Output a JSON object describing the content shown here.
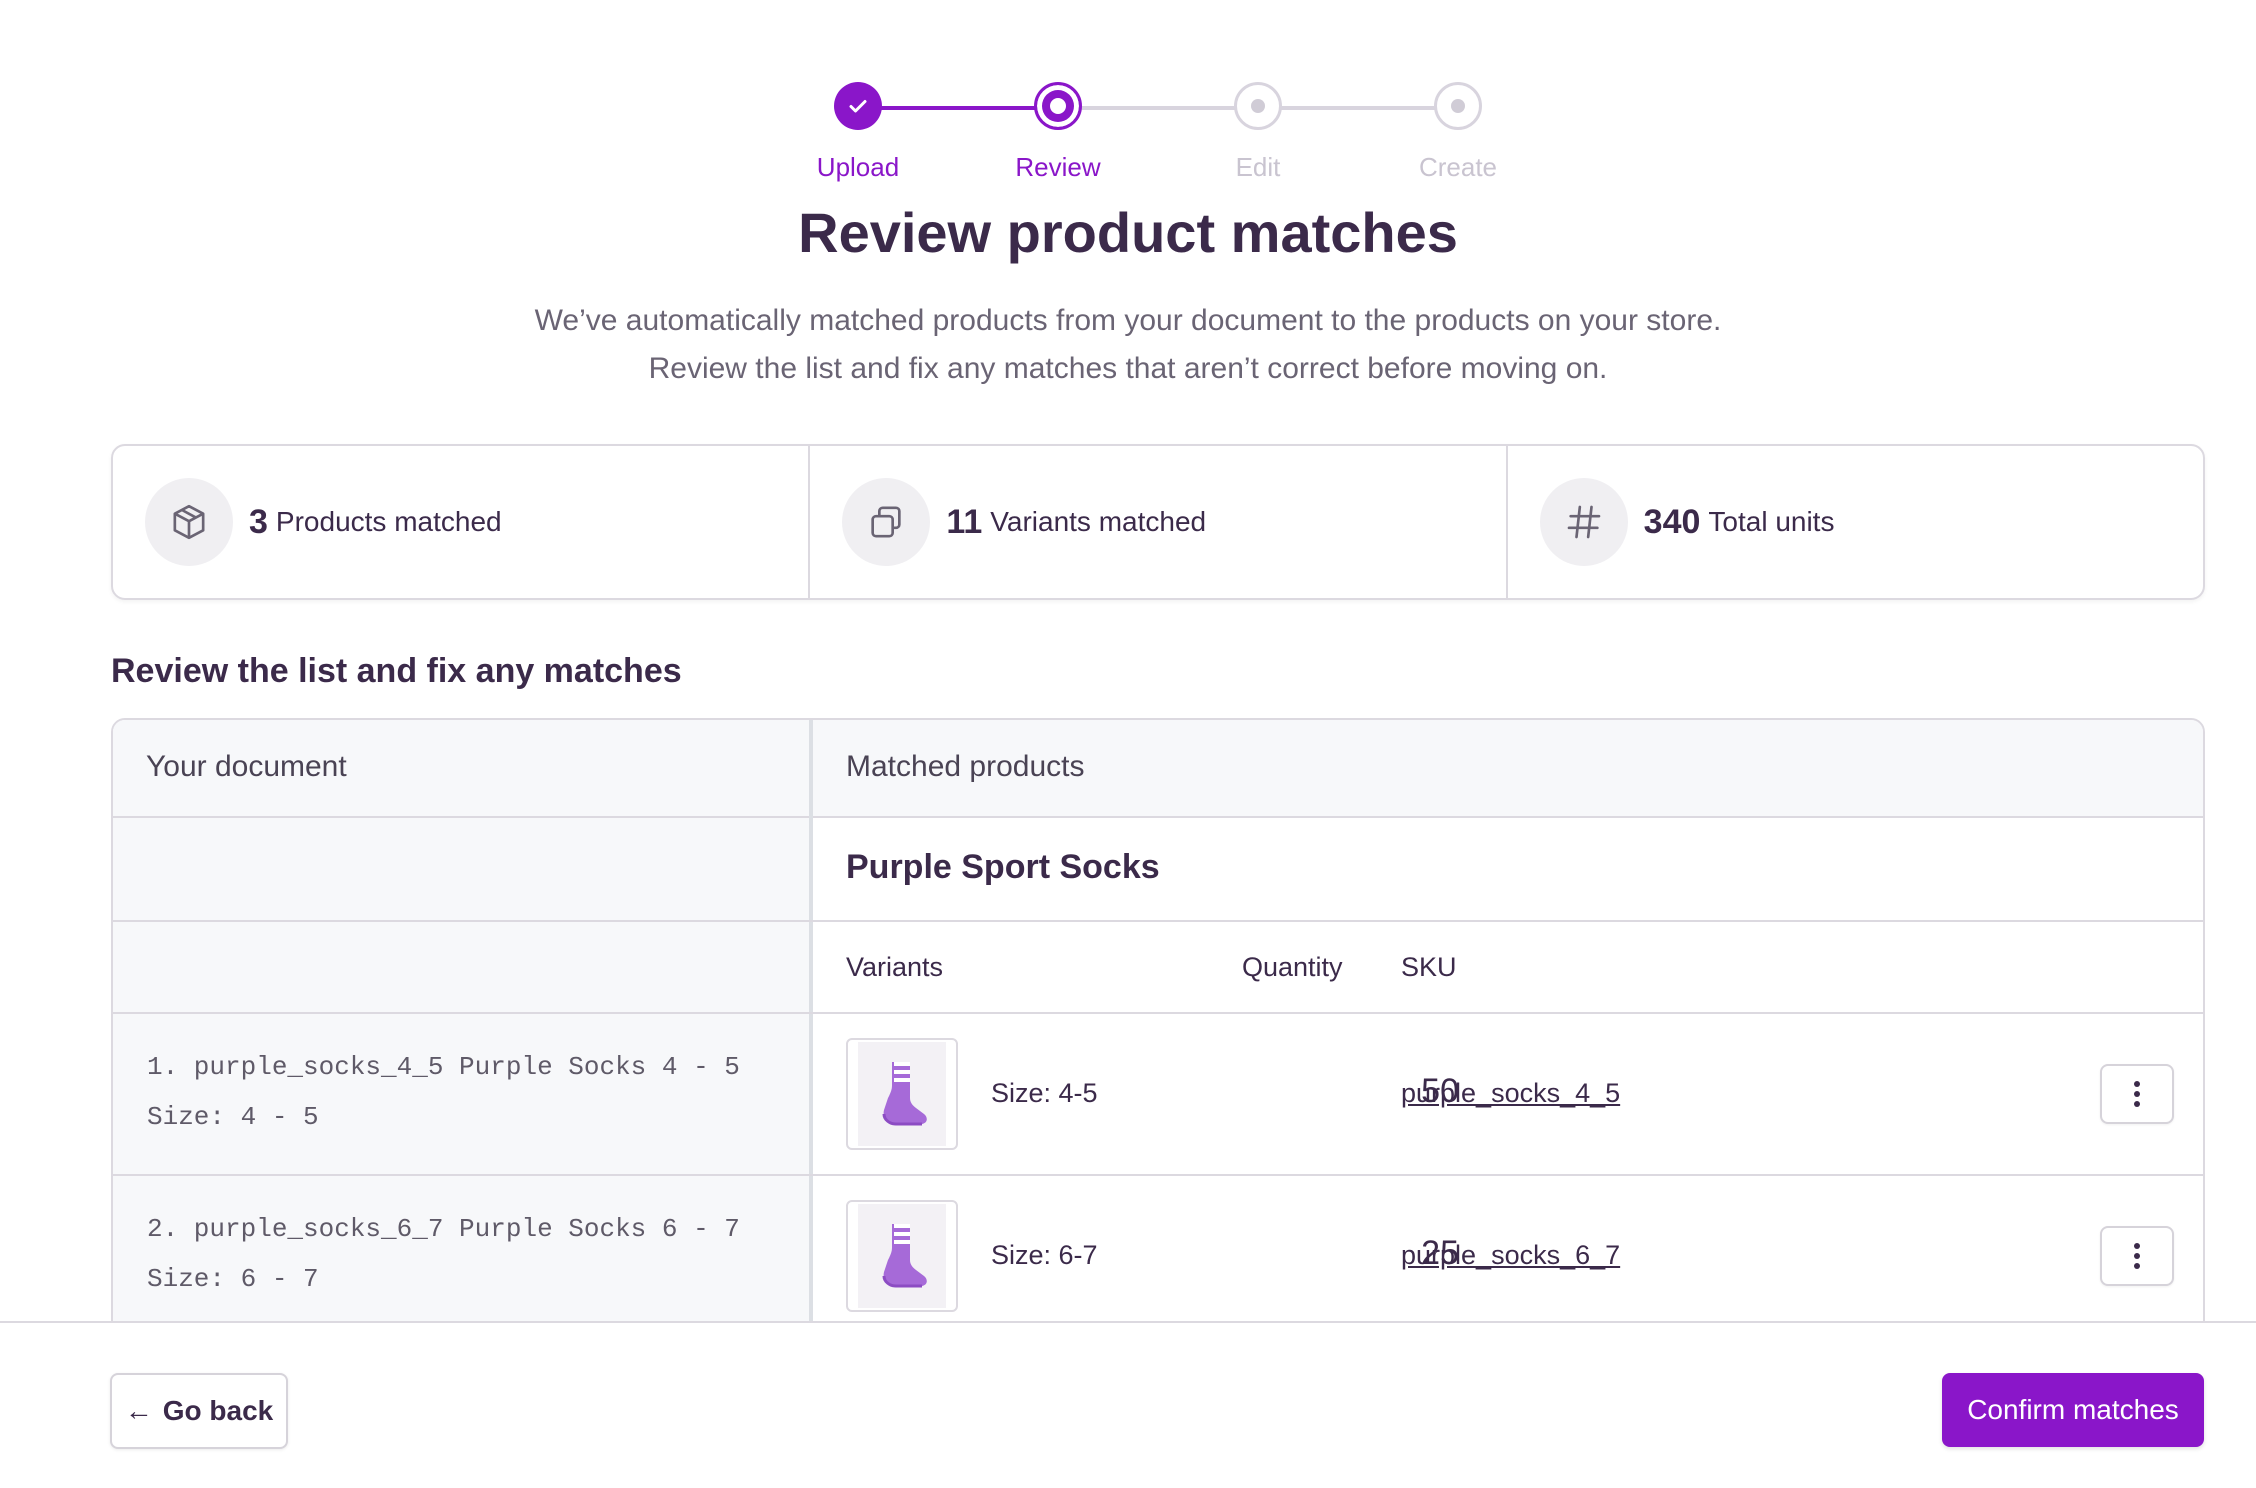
{
  "stepper": {
    "steps": [
      {
        "label": "Upload",
        "state": "done"
      },
      {
        "label": "Review",
        "state": "active"
      },
      {
        "label": "Edit",
        "state": "pending"
      },
      {
        "label": "Create",
        "state": "pending"
      }
    ]
  },
  "header": {
    "title": "Review product matches",
    "subtitle_line1": "We’ve automatically matched products from your document to the products on your store.",
    "subtitle_line2": "Review the list and fix any matches that aren’t correct before moving on."
  },
  "stats": [
    {
      "icon": "box-icon",
      "value": "3",
      "label": "Products matched"
    },
    {
      "icon": "copy-icon",
      "value": "11",
      "label": "Variants matched"
    },
    {
      "icon": "hash-icon",
      "value": "340",
      "label": "Total units"
    }
  ],
  "section_title": "Review the list and fix any matches",
  "table": {
    "col_document": "Your document",
    "col_matched": "Matched products",
    "product_name": "Purple Sport Socks",
    "sub_headers": {
      "variants": "Variants",
      "quantity": "Quantity",
      "sku": "SKU"
    },
    "rows": [
      {
        "doc_line1": "1. purple_socks_4_5 Purple Socks 4 - 5",
        "doc_line2": "Size: 4 - 5",
        "variant": "Size: 4-5",
        "quantity": "50",
        "sku": "purple_socks_4_5"
      },
      {
        "doc_line1": "2. purple_socks_6_7 Purple Socks 6 - 7",
        "doc_line2": "Size: 6 - 7",
        "variant": "Size: 6-7",
        "quantity": "25",
        "sku": "purple_socks_6_7"
      }
    ]
  },
  "footer": {
    "back_label": "Go back",
    "confirm_label": "Confirm matches"
  },
  "colors": {
    "accent": "#8a16c9",
    "text": "#3b2a4a",
    "muted": "#6a6474"
  }
}
